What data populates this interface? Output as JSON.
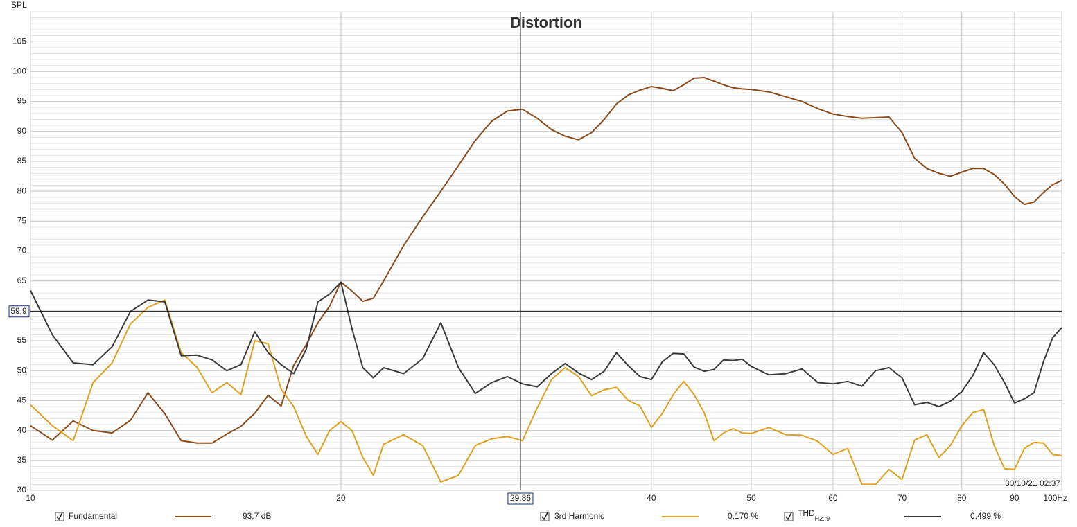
{
  "chart_data": {
    "type": "line",
    "title": "Distortion",
    "y_label": "SPL",
    "timestamp": "30/10/21 02:37",
    "xscale": "log",
    "grid": true,
    "xlim": [
      10,
      100
    ],
    "xticks": [
      10,
      20,
      40,
      50,
      60,
      70,
      80,
      90,
      {
        "value": 100,
        "label": "100Hz"
      }
    ],
    "ylim": [
      30,
      110
    ],
    "yticks": [
      30,
      35,
      40,
      45,
      50,
      55,
      60,
      65,
      70,
      75,
      80,
      85,
      90,
      95,
      100,
      105
    ],
    "cursor": {
      "x": 29.86,
      "x_label": "29,86",
      "y": 59.9,
      "y_label": "59,9"
    },
    "x": [
      10,
      10.5,
      11,
      11.5,
      12,
      12.5,
      13,
      13.5,
      14,
      14.5,
      15,
      15.5,
      16,
      16.5,
      17,
      17.5,
      18,
      18.5,
      19,
      19.5,
      20,
      20.5,
      21,
      21.5,
      22,
      23,
      24,
      25,
      26,
      27,
      28,
      29,
      30,
      31,
      32,
      33,
      34,
      35,
      36,
      37,
      38,
      39,
      40,
      41,
      42,
      43,
      44,
      45,
      46,
      47,
      48,
      49,
      50,
      52,
      54,
      56,
      58,
      60,
      62,
      64,
      66,
      68,
      70,
      72,
      74,
      76,
      78,
      80,
      82,
      84,
      86,
      88,
      90,
      92,
      94,
      96,
      98,
      100
    ],
    "series": [
      {
        "name": "Fundamental",
        "readout": "93,7 dB",
        "color": "#8b4a1c",
        "values": [
          40.8,
          38.4,
          41.6,
          40.0,
          39.6,
          41.7,
          46.3,
          42.8,
          38.3,
          37.9,
          37.9,
          39.4,
          40.7,
          42.9,
          45.9,
          44.1,
          50.9,
          54.3,
          58.0,
          60.8,
          64.8,
          63.3,
          61.6,
          62.1,
          65.0,
          70.9,
          75.7,
          80.0,
          84.3,
          88.5,
          91.7,
          93.4,
          93.7,
          92.2,
          90.3,
          89.2,
          88.6,
          89.8,
          92.0,
          94.6,
          96.1,
          96.9,
          97.5,
          97.2,
          96.8,
          97.8,
          98.9,
          99.0,
          98.4,
          97.8,
          97.3,
          97.1,
          97.0,
          96.6,
          95.8,
          95.0,
          93.8,
          92.9,
          92.5,
          92.2,
          92.3,
          92.4,
          89.8,
          85.5,
          83.8,
          83.0,
          82.5,
          83.2,
          83.8,
          83.8,
          82.8,
          81.2,
          79.1,
          77.8,
          78.2,
          79.8,
          81.1,
          81.8
        ]
      },
      {
        "name": "3rd Harmonic",
        "readout": "0,170 %",
        "color": "#e0a020",
        "values": [
          44.3,
          40.8,
          38.3,
          48.0,
          51.3,
          57.8,
          60.6,
          61.8,
          53.0,
          50.6,
          46.3,
          48.0,
          46.0,
          55.0,
          54.5,
          46.9,
          44.0,
          39.1,
          36.0,
          40.0,
          41.5,
          40.0,
          35.5,
          32.5,
          37.7,
          39.3,
          37.5,
          31.4,
          32.5,
          37.5,
          38.6,
          39.0,
          38.3,
          43.8,
          48.5,
          50.5,
          49.0,
          45.8,
          46.8,
          47.2,
          45.0,
          44.1,
          40.5,
          42.9,
          46.0,
          48.2,
          46.0,
          43.0,
          38.3,
          39.6,
          40.3,
          39.6,
          39.5,
          40.5,
          39.3,
          39.2,
          38.2,
          36.0,
          37.0,
          31.0,
          31.0,
          33.5,
          31.8,
          38.4,
          39.3,
          35.5,
          37.5,
          40.8,
          43.0,
          43.5,
          37.5,
          33.6,
          33.5,
          37.0,
          38.0,
          37.9,
          36.0,
          35.8
        ]
      },
      {
        "name": "THD",
        "name_sub": "H2..9",
        "readout": "0,499 %",
        "color": "#3a3a3a",
        "values": [
          63.4,
          56.0,
          51.3,
          51.0,
          54.0,
          59.9,
          61.8,
          61.5,
          52.5,
          52.6,
          51.8,
          50.0,
          51.0,
          56.5,
          53.0,
          51.0,
          49.5,
          53.5,
          61.5,
          62.8,
          64.8,
          57.0,
          50.5,
          48.8,
          50.5,
          49.5,
          52.0,
          58.0,
          50.5,
          46.2,
          48.0,
          49.0,
          47.8,
          47.3,
          49.5,
          51.2,
          49.6,
          48.5,
          49.9,
          53.0,
          50.8,
          49.0,
          48.5,
          51.5,
          52.9,
          52.8,
          50.6,
          49.9,
          50.2,
          51.8,
          51.7,
          51.9,
          50.7,
          49.3,
          49.5,
          50.3,
          48.0,
          47.8,
          48.2,
          47.4,
          50.0,
          50.5,
          48.8,
          44.3,
          44.7,
          44.0,
          44.9,
          46.5,
          49.2,
          53.0,
          51.0,
          48.0,
          44.6,
          45.3,
          46.3,
          51.5,
          55.5,
          57.2
        ]
      }
    ]
  }
}
